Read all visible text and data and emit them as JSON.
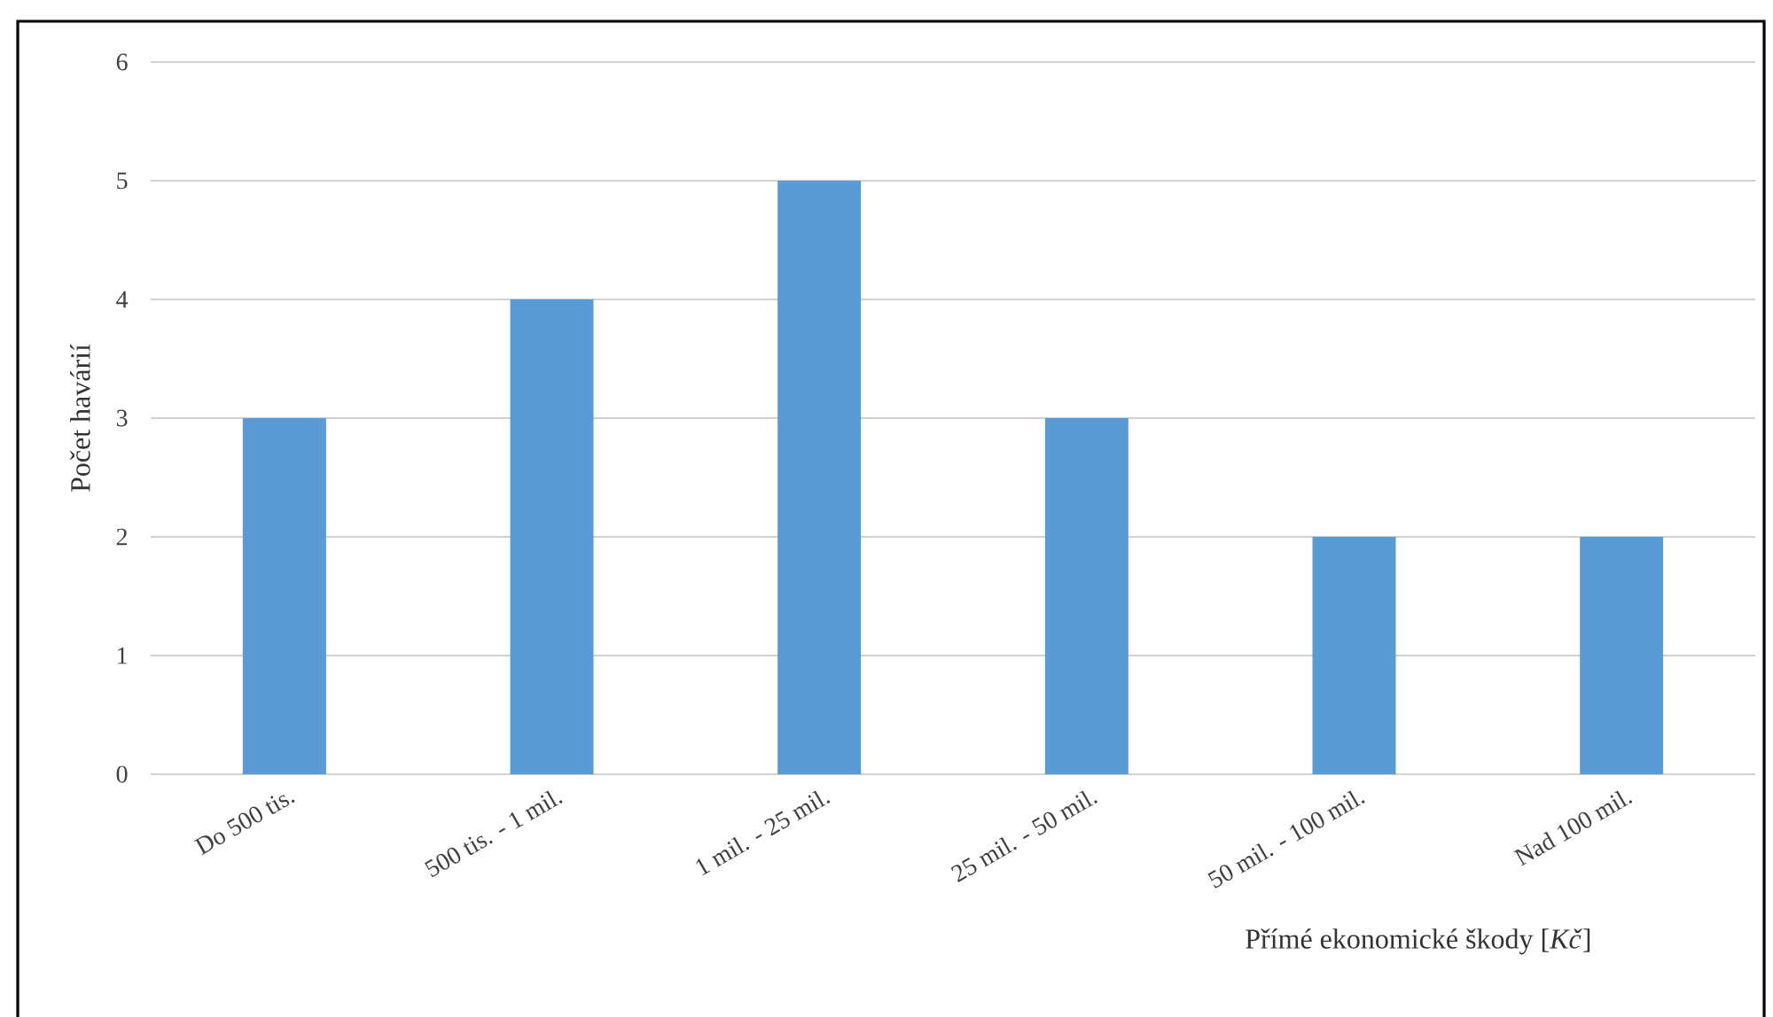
{
  "chart_data": {
    "type": "bar",
    "ylabel": "Počet havárií",
    "xlabel": "Přímé ekonomické škody [*Kč*]",
    "categories": [
      "Do 500 tis.",
      "500 tis. - 1 mil.",
      "1 mil. - 25 mil.",
      "25 mil. - 50 mil.",
      "50 mil. - 100 mil.",
      "Nad 100 mil."
    ],
    "values": [
      3,
      4,
      5,
      3,
      2,
      2
    ],
    "color": "#5b9bd5",
    "ylim": [
      0,
      6
    ],
    "yticks": [
      0,
      1,
      2,
      3,
      4,
      5,
      6
    ],
    "grid": "y"
  }
}
